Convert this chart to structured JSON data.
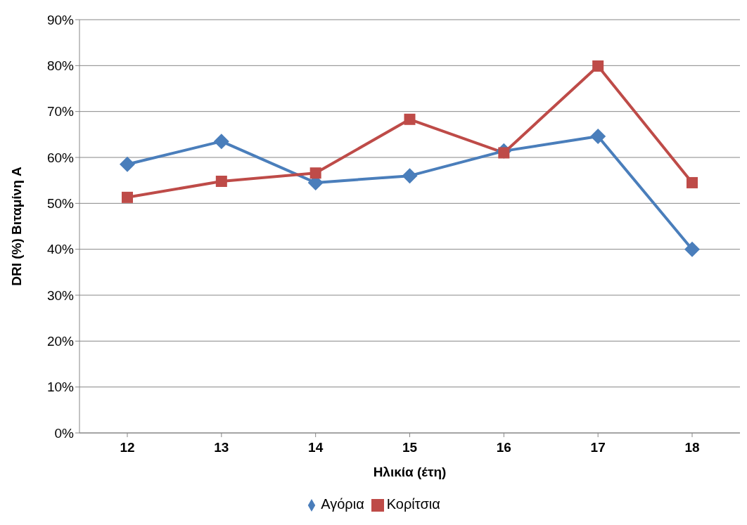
{
  "chart_data": {
    "type": "line",
    "xlabel": "Ηλικία (έτη)",
    "ylabel": "DRI (%) Βιταμίνη A",
    "categories": [
      "12",
      "13",
      "14",
      "15",
      "16",
      "17",
      "18"
    ],
    "series": [
      {
        "name": "Αγόρια",
        "color": "#4a7ebb",
        "marker": "diamond",
        "values": [
          58.5,
          63.5,
          54.5,
          56,
          61.4,
          64.6,
          40
        ]
      },
      {
        "name": "Κορίτσια",
        "color": "#be4b48",
        "marker": "square",
        "values": [
          51.3,
          54.8,
          56.6,
          68.3,
          61,
          79.9,
          54.5
        ]
      }
    ],
    "ylim": [
      0,
      90
    ],
    "yticks": [
      {
        "value": 0,
        "label": "0%"
      },
      {
        "value": 10,
        "label": "10%"
      },
      {
        "value": 20,
        "label": "20%"
      },
      {
        "value": 30,
        "label": "30%"
      },
      {
        "value": 40,
        "label": "40%"
      },
      {
        "value": 50,
        "label": "50%"
      },
      {
        "value": 60,
        "label": "60%"
      },
      {
        "value": 70,
        "label": "70%"
      },
      {
        "value": 80,
        "label": "80%"
      },
      {
        "value": 90,
        "label": "90%"
      }
    ],
    "grid": "y",
    "legend": "bottom",
    "line_style": "solid"
  }
}
